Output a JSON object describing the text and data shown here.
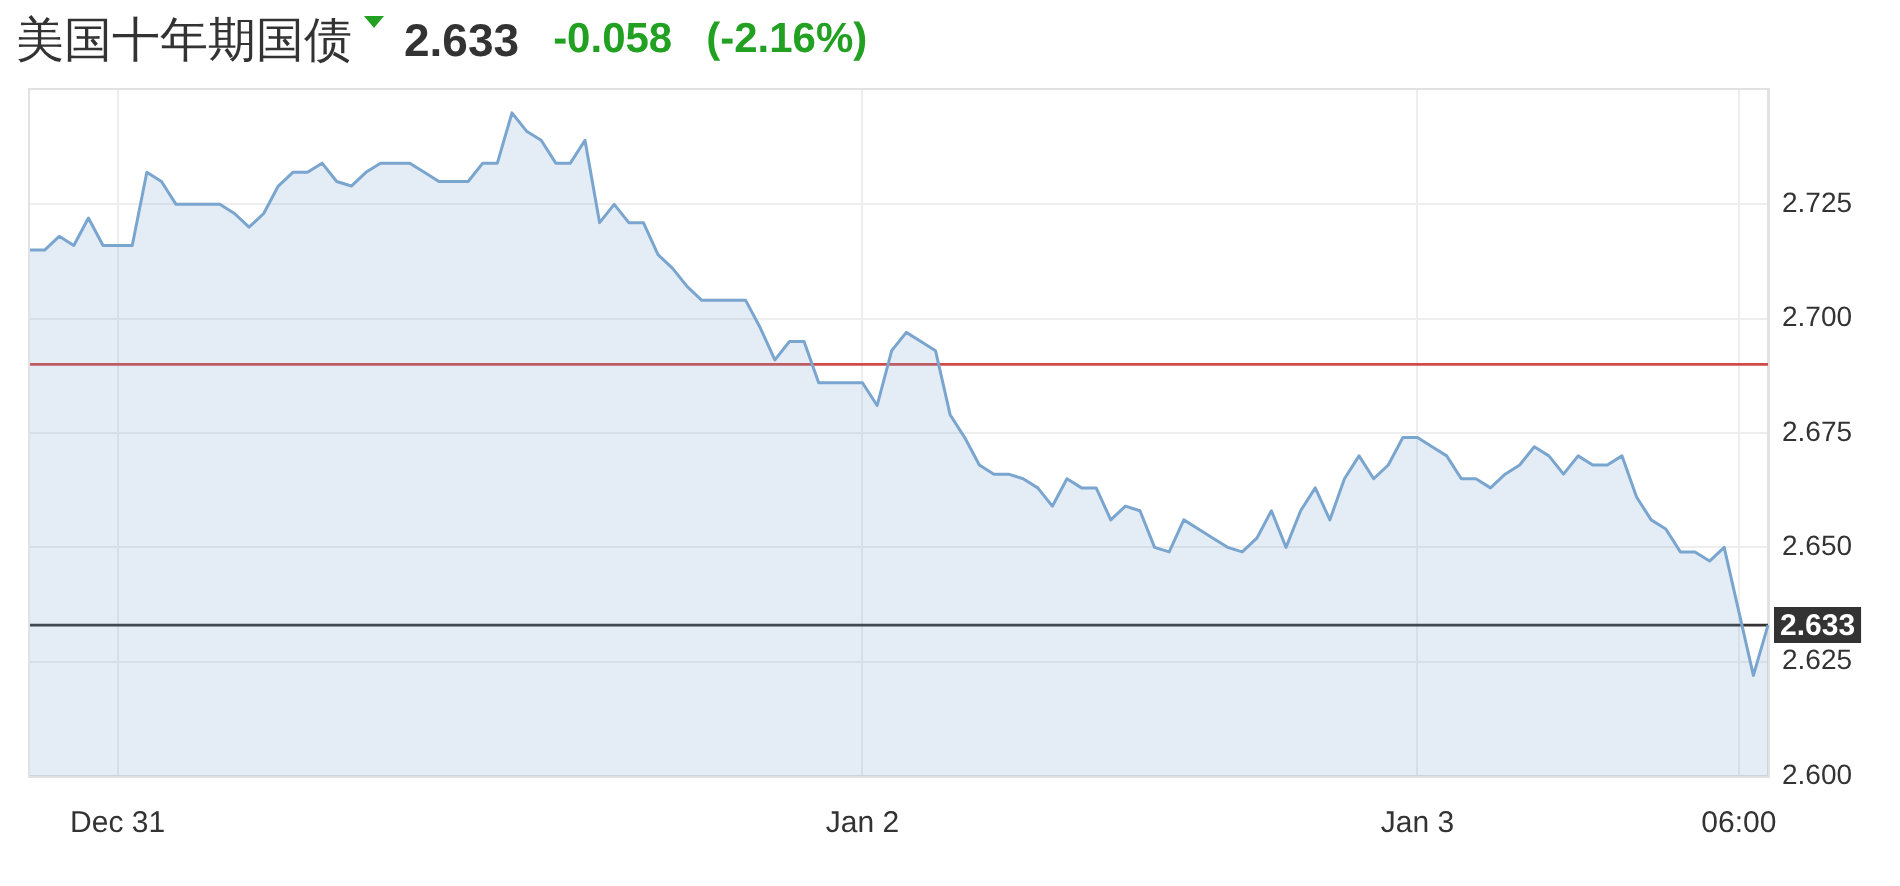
{
  "chart_data": {
    "type": "area",
    "title": "美国十年期国债",
    "annotations": [
      "2.633",
      "-0.058",
      "(-2.16%)"
    ],
    "categories": [
      null,
      null,
      null,
      null,
      null,
      null,
      "Dec 31",
      null,
      null,
      null,
      null,
      null,
      null,
      null,
      null,
      null,
      null,
      null,
      null,
      null,
      null,
      null,
      null,
      null,
      null,
      null,
      null,
      null,
      null,
      null,
      null,
      null,
      null,
      null,
      null,
      null,
      null,
      null,
      null,
      null,
      null,
      null,
      null,
      null,
      null,
      null,
      null,
      null,
      null,
      null,
      null,
      null,
      null,
      null,
      null,
      null,
      null,
      "Jan 2",
      null,
      null,
      null,
      null,
      null,
      null,
      null,
      null,
      null,
      null,
      null,
      null,
      null,
      null,
      null,
      null,
      null,
      null,
      null,
      null,
      null,
      null,
      null,
      null,
      null,
      null,
      null,
      null,
      null,
      null,
      null,
      null,
      null,
      null,
      null,
      null,
      null,
      "Jan 3",
      null,
      null,
      null,
      null,
      null,
      null,
      null,
      null,
      null,
      null,
      null,
      null,
      null,
      null,
      null,
      null,
      null,
      null,
      null,
      null,
      null,
      "06:00",
      null,
      null
    ],
    "values": [
      2.715,
      2.715,
      2.718,
      2.716,
      2.722,
      2.716,
      2.716,
      2.716,
      2.732,
      2.73,
      2.725,
      2.725,
      2.725,
      2.725,
      2.723,
      2.72,
      2.723,
      2.729,
      2.732,
      2.732,
      2.734,
      2.73,
      2.729,
      2.732,
      2.734,
      2.734,
      2.734,
      2.732,
      2.73,
      2.73,
      2.73,
      2.734,
      2.734,
      2.745,
      2.741,
      2.739,
      2.734,
      2.734,
      2.739,
      2.721,
      2.725,
      2.721,
      2.721,
      2.714,
      2.711,
      2.707,
      2.704,
      2.704,
      2.704,
      2.704,
      2.698,
      2.691,
      2.695,
      2.695,
      2.686,
      2.686,
      2.686,
      2.686,
      2.681,
      2.693,
      2.697,
      2.695,
      2.693,
      2.679,
      2.674,
      2.668,
      2.666,
      2.666,
      2.665,
      2.663,
      2.659,
      2.665,
      2.663,
      2.663,
      2.656,
      2.659,
      2.658,
      2.65,
      2.649,
      2.656,
      2.654,
      2.652,
      2.65,
      2.649,
      2.652,
      2.658,
      2.65,
      2.658,
      2.663,
      2.656,
      2.665,
      2.67,
      2.665,
      2.668,
      2.674,
      2.674,
      2.672,
      2.67,
      2.665,
      2.665,
      2.663,
      2.666,
      2.668,
      2.672,
      2.67,
      2.666,
      2.67,
      2.668,
      2.668,
      2.67,
      2.661,
      2.656,
      2.654,
      2.649,
      2.649,
      2.647,
      2.65,
      2.636,
      2.622,
      2.633
    ],
    "color": "#7aa5cf",
    "ylim": [
      2.6,
      2.75
    ],
    "yticks": [
      {
        "value": 2.6,
        "label": "2.600"
      },
      {
        "value": 2.625,
        "label": "2.625"
      },
      {
        "value": 2.65,
        "label": "2.650"
      },
      {
        "value": 2.675,
        "label": "2.675"
      },
      {
        "value": 2.7,
        "label": "2.700"
      },
      {
        "value": 2.725,
        "label": "2.725"
      }
    ],
    "grid": true,
    "marker": "none",
    "ref_lines": [
      {
        "axis": "y",
        "value": 2.69,
        "color": "#d04a4a"
      },
      {
        "axis": "y",
        "value": 2.633,
        "label": "2.633",
        "color": "#333333"
      }
    ]
  }
}
